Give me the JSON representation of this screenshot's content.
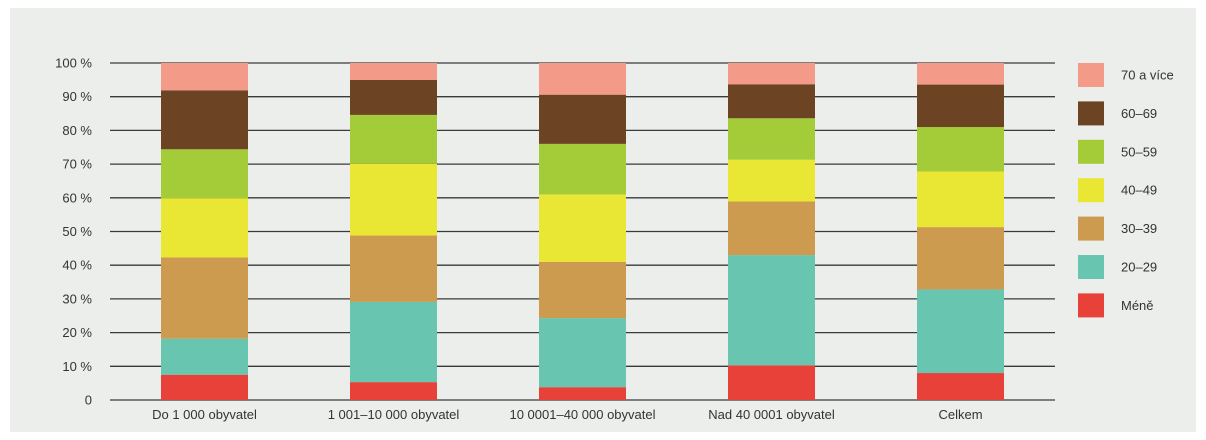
{
  "chart_data": {
    "type": "bar",
    "stacked": true,
    "categories": [
      "Do 1 000 obyvatel",
      "1 001–10 000 obyvatel",
      "10 0001–40 000 obyvatel",
      "Nad 40 0001 obyvatel",
      "Celkem"
    ],
    "y_ticks": [
      "0",
      "10 %",
      "20 %",
      "30 %",
      "40 %",
      "50 %",
      "60 %",
      "70 %",
      "80 %",
      "90 %",
      "100 %"
    ],
    "ylim": [
      0,
      100
    ],
    "grid": true,
    "legend_position": "right",
    "series": [
      {
        "name": "Méně",
        "color": "#e8413a",
        "values": [
          7.5,
          5.3,
          3.8,
          10.3,
          8.0
        ]
      },
      {
        "name": "20–29",
        "color": "#67c5b0",
        "values": [
          10.7,
          23.8,
          20.5,
          32.7,
          24.8
        ]
      },
      {
        "name": "30–39",
        "color": "#cd9b50",
        "values": [
          24.1,
          19.7,
          16.7,
          15.9,
          18.5
        ]
      },
      {
        "name": "40–49",
        "color": "#e9e634",
        "values": [
          17.6,
          21.3,
          20.0,
          12.4,
          16.5
        ]
      },
      {
        "name": "50–59",
        "color": "#a4cc38",
        "values": [
          14.5,
          14.5,
          15.0,
          12.3,
          13.2
        ]
      },
      {
        "name": "60–69",
        "color": "#6d4423",
        "values": [
          17.5,
          10.4,
          14.6,
          10.1,
          12.6
        ]
      },
      {
        "name": "70 a více",
        "color": "#f49a88",
        "values": [
          8.1,
          5.0,
          9.4,
          6.3,
          6.4
        ]
      }
    ]
  }
}
